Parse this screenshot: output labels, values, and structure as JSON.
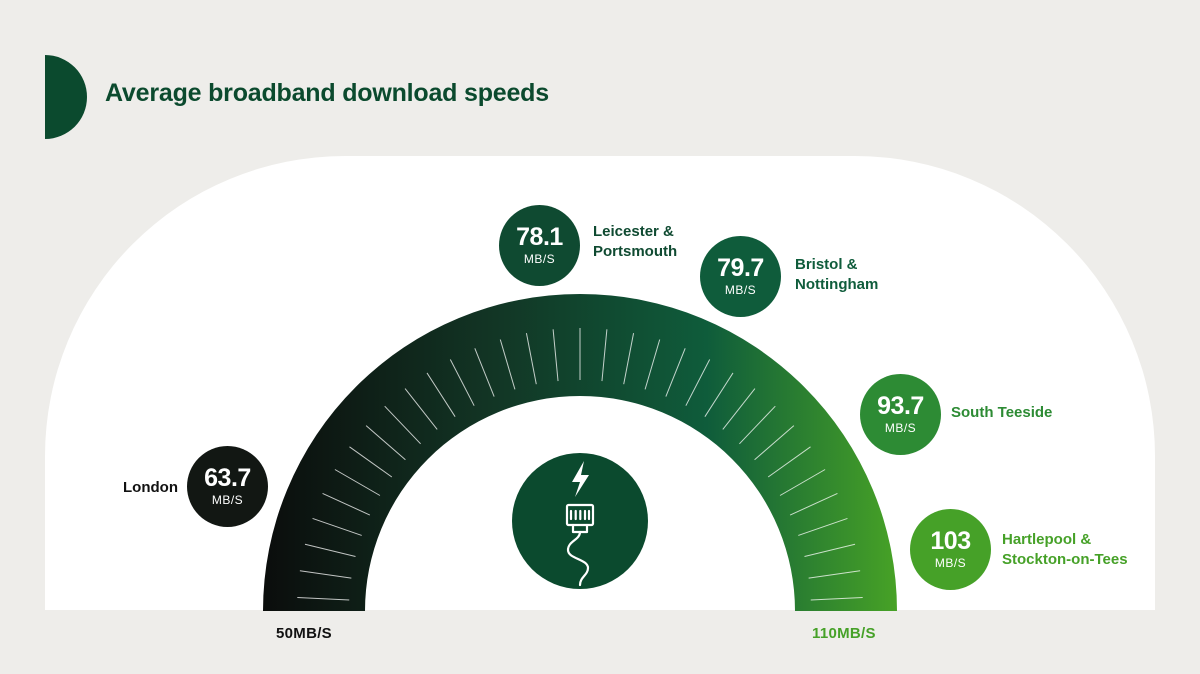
{
  "title": "Average broadband download speeds",
  "chart_data": {
    "type": "gauge",
    "title": "Average broadband download speeds",
    "range": [
      50,
      110
    ],
    "min_label": "50MB/S",
    "max_label": "110MB/S",
    "unit": "MB/S",
    "regions": [
      {
        "value": 63.7,
        "label": "63.7",
        "region": "London",
        "color": "#121713"
      },
      {
        "value": 78.1,
        "label": "78.1",
        "region": "Leicester & Portsmouth",
        "color": "#0f4a31"
      },
      {
        "value": 79.7,
        "label": "79.7",
        "region": "Bristol & Nottingham",
        "color": "#0f5c3b"
      },
      {
        "value": 93.7,
        "label": "93.7",
        "region": "South Teeside",
        "color": "#2d8b34"
      },
      {
        "value": 103,
        "label": "103",
        "region": "Hartlepool & Stockton-on-Tees",
        "color": "#46a128"
      }
    ]
  },
  "colors": {
    "dark_green": "#0b4a2e",
    "bright_green": "#46a128",
    "background": "#eeedea",
    "panel": "#ffffff"
  },
  "icon": "ethernet-plug-lightning-icon"
}
